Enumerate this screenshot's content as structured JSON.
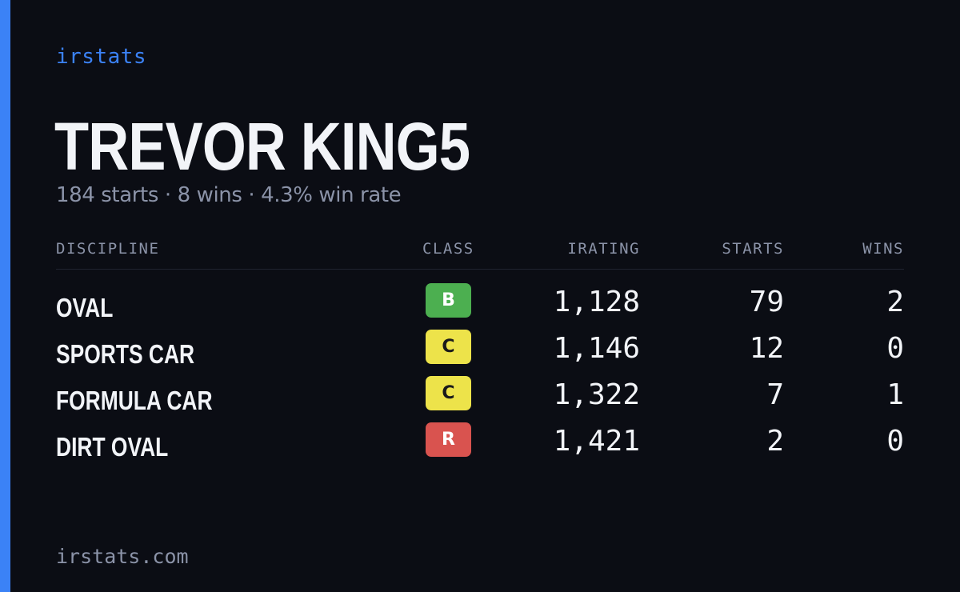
{
  "brand": "irstats",
  "driver": {
    "name": "TREVOR KING5",
    "summary": "184 starts · 8 wins · 4.3% win rate"
  },
  "table": {
    "headers": {
      "discipline": "DISCIPLINE",
      "class": "CLASS",
      "irating": "IRATING",
      "starts": "STARTS",
      "wins": "WINS"
    },
    "rows": [
      {
        "discipline": "OVAL",
        "class": "B",
        "class_bg": "#4caf50",
        "class_fg": "#ffffff",
        "irating": "1,128",
        "starts": "79",
        "wins": "2"
      },
      {
        "discipline": "SPORTS CAR",
        "class": "C",
        "class_bg": "#ede34a",
        "class_fg": "#1a1a1a",
        "irating": "1,146",
        "starts": "12",
        "wins": "0"
      },
      {
        "discipline": "FORMULA CAR",
        "class": "C",
        "class_bg": "#ede34a",
        "class_fg": "#1a1a1a",
        "irating": "1,322",
        "starts": "7",
        "wins": "1"
      },
      {
        "discipline": "DIRT OVAL",
        "class": "R",
        "class_bg": "#d9534f",
        "class_fg": "#ffffff",
        "irating": "1,421",
        "starts": "2",
        "wins": "0"
      }
    ]
  },
  "footer": "irstats.com",
  "colors": {
    "accent": "#3b82f6",
    "background": "#0b0d14",
    "text": "#f2f4f8",
    "muted": "#8b93a8"
  }
}
